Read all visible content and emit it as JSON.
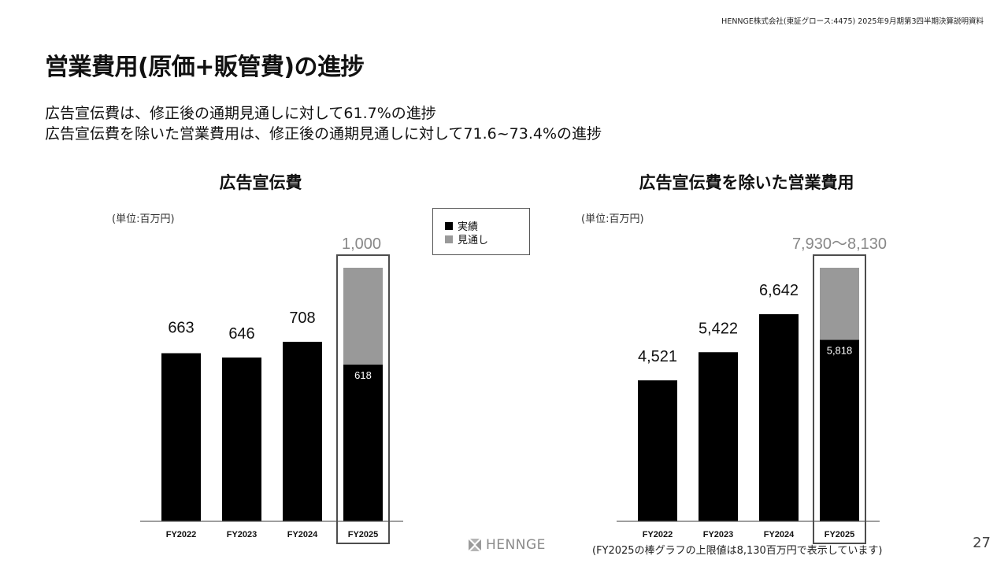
{
  "header": {
    "note": "HENNGE株式会社(東証グロース:4475) 2025年9月期第3四半期決算説明資料"
  },
  "title": "営業費用(原価+販管費)の進捗",
  "summary": [
    "広告宣伝費は、修正後の通期見通しに対して61.7%の進捗",
    "広告宣伝費を除いた営業費用は、修正後の通期見通しに対して71.6~73.4%の進捗"
  ],
  "legend": {
    "items": [
      {
        "label": "実績",
        "color": "#000000"
      },
      {
        "label": "見通し",
        "color": "#999999"
      }
    ]
  },
  "colors": {
    "actual": "#000000",
    "forecast": "#999999",
    "highlight_border": "#4d4d4d",
    "forecast_label": "#888888"
  },
  "chart_data": [
    {
      "type": "bar",
      "title": "広告宣伝費",
      "unit_label": "(単位:百万円)",
      "categories": [
        "FY2022",
        "FY2023",
        "FY2024",
        "FY2025"
      ],
      "series": [
        {
          "name": "実績",
          "values": [
            663,
            646,
            708,
            618
          ]
        },
        {
          "name": "見通し",
          "values": [
            null,
            null,
            null,
            382
          ]
        }
      ],
      "data_labels": [
        "663",
        "646",
        "708",
        "618"
      ],
      "forecast_total": 1000,
      "forecast_label": "1,000",
      "highlight_category": "FY2025",
      "ylim": [
        0,
        1000
      ]
    },
    {
      "type": "bar",
      "title": "広告宣伝費を除いた営業費用",
      "unit_label": "(単位:百万円)",
      "categories": [
        "FY2022",
        "FY2023",
        "FY2024",
        "FY2025"
      ],
      "series": [
        {
          "name": "実績",
          "values": [
            4521,
            5422,
            6642,
            5818
          ]
        },
        {
          "name": "見通し",
          "values": [
            null,
            null,
            null,
            2312
          ]
        }
      ],
      "data_labels": [
        "4,521",
        "5,422",
        "6,642",
        "5,818"
      ],
      "forecast_total": 8130,
      "forecast_label": "7,930～8,130",
      "highlight_category": "FY2025",
      "ylim": [
        0,
        8130
      ]
    }
  ],
  "footnote": "(FY2025の棒グラフの上限値は8,130百万円で表示しています)",
  "logo": {
    "text": "HENNGE"
  },
  "page_number": "27"
}
